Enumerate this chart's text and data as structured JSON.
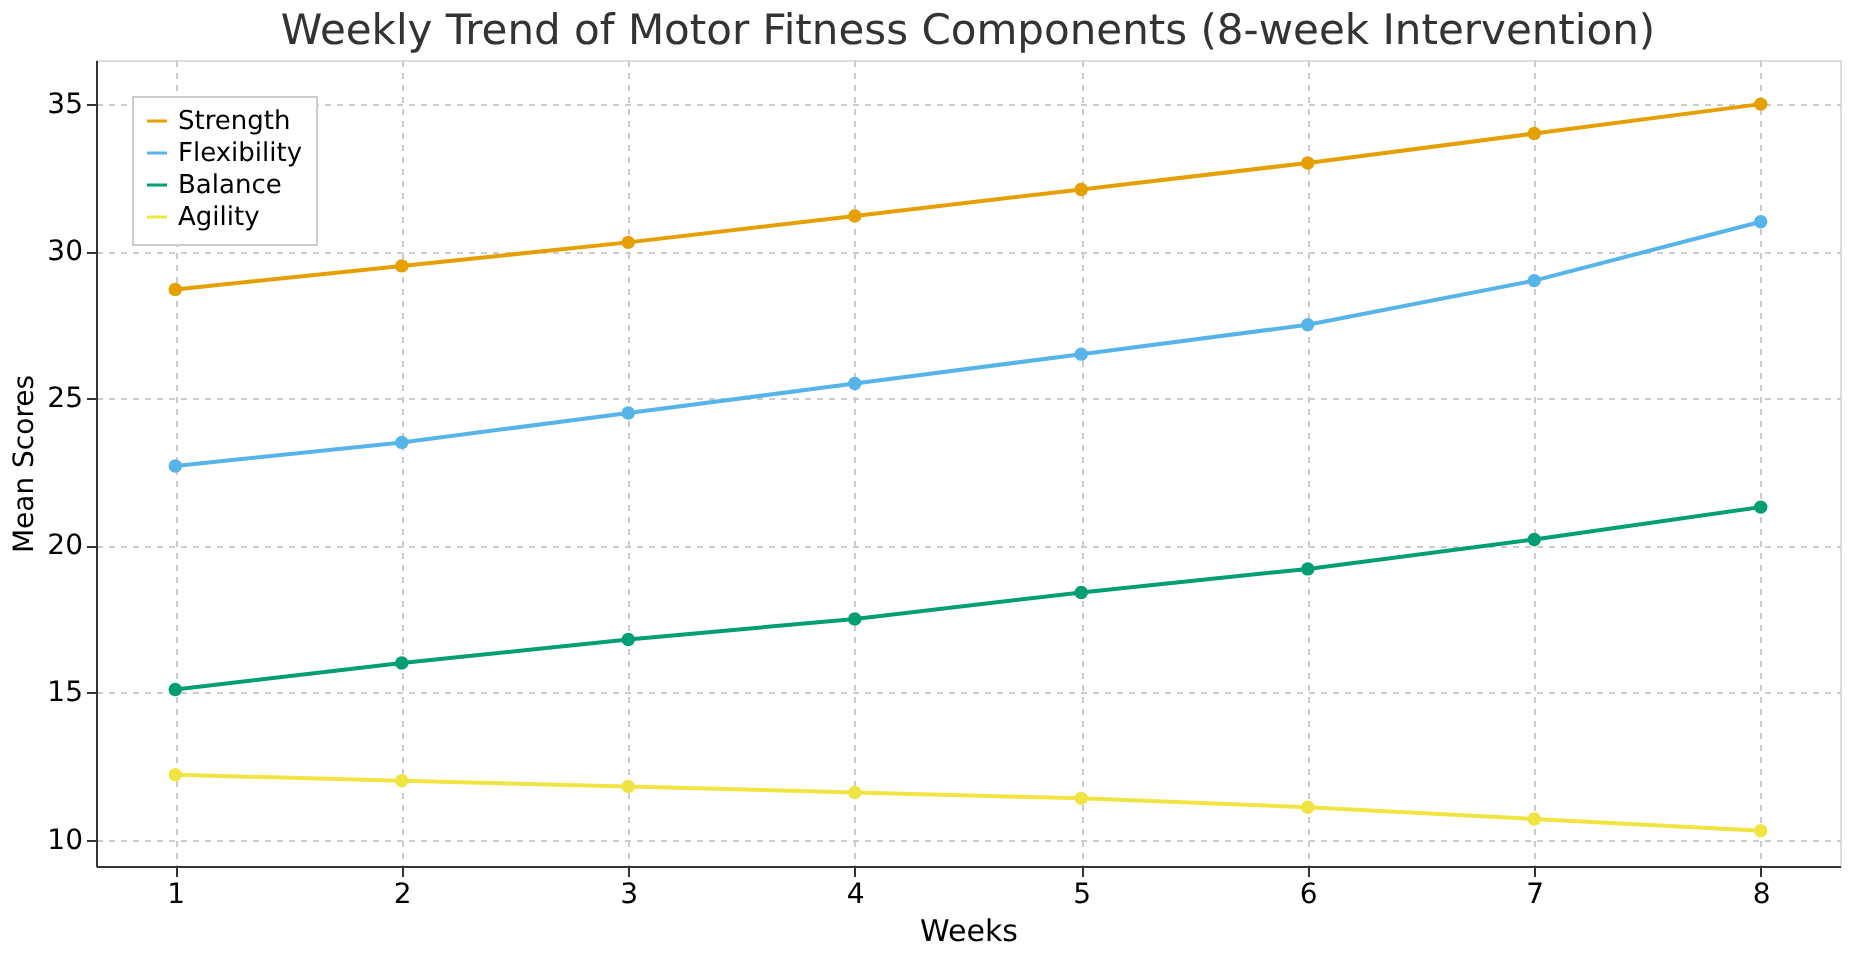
{
  "chart_data": {
    "type": "line",
    "title": "Weekly Trend of Motor Fitness Components (8-week Intervention)",
    "xlabel": "Weeks",
    "ylabel": "Mean Scores",
    "x": [
      1,
      2,
      3,
      4,
      5,
      6,
      7,
      8
    ],
    "series": [
      {
        "name": "Strength",
        "color": "#e69f00",
        "values": [
          28.7,
          29.5,
          30.3,
          31.2,
          32.1,
          33.0,
          34.0,
          35.0
        ]
      },
      {
        "name": "Flexibility",
        "color": "#56b4e9",
        "values": [
          22.7,
          23.5,
          24.5,
          25.5,
          26.5,
          27.5,
          29.0,
          31.0
        ]
      },
      {
        "name": "Balance",
        "color": "#009e73",
        "values": [
          15.1,
          16.0,
          16.8,
          17.5,
          18.4,
          19.2,
          20.2,
          21.3
        ]
      },
      {
        "name": "Agility",
        "color": "#f0e442",
        "values": [
          12.2,
          12.0,
          11.8,
          11.6,
          11.4,
          11.1,
          10.7,
          10.3
        ]
      }
    ],
    "xlim": [
      0.65,
      8.35
    ],
    "xticks": [
      1,
      2,
      3,
      4,
      5,
      6,
      7,
      8
    ],
    "ylim": [
      9.1,
      36.5
    ],
    "yticks": [
      10,
      15,
      20,
      25,
      30,
      35
    ],
    "grid": true,
    "legend": "top left",
    "marker": "circle",
    "line_style": "solid"
  }
}
